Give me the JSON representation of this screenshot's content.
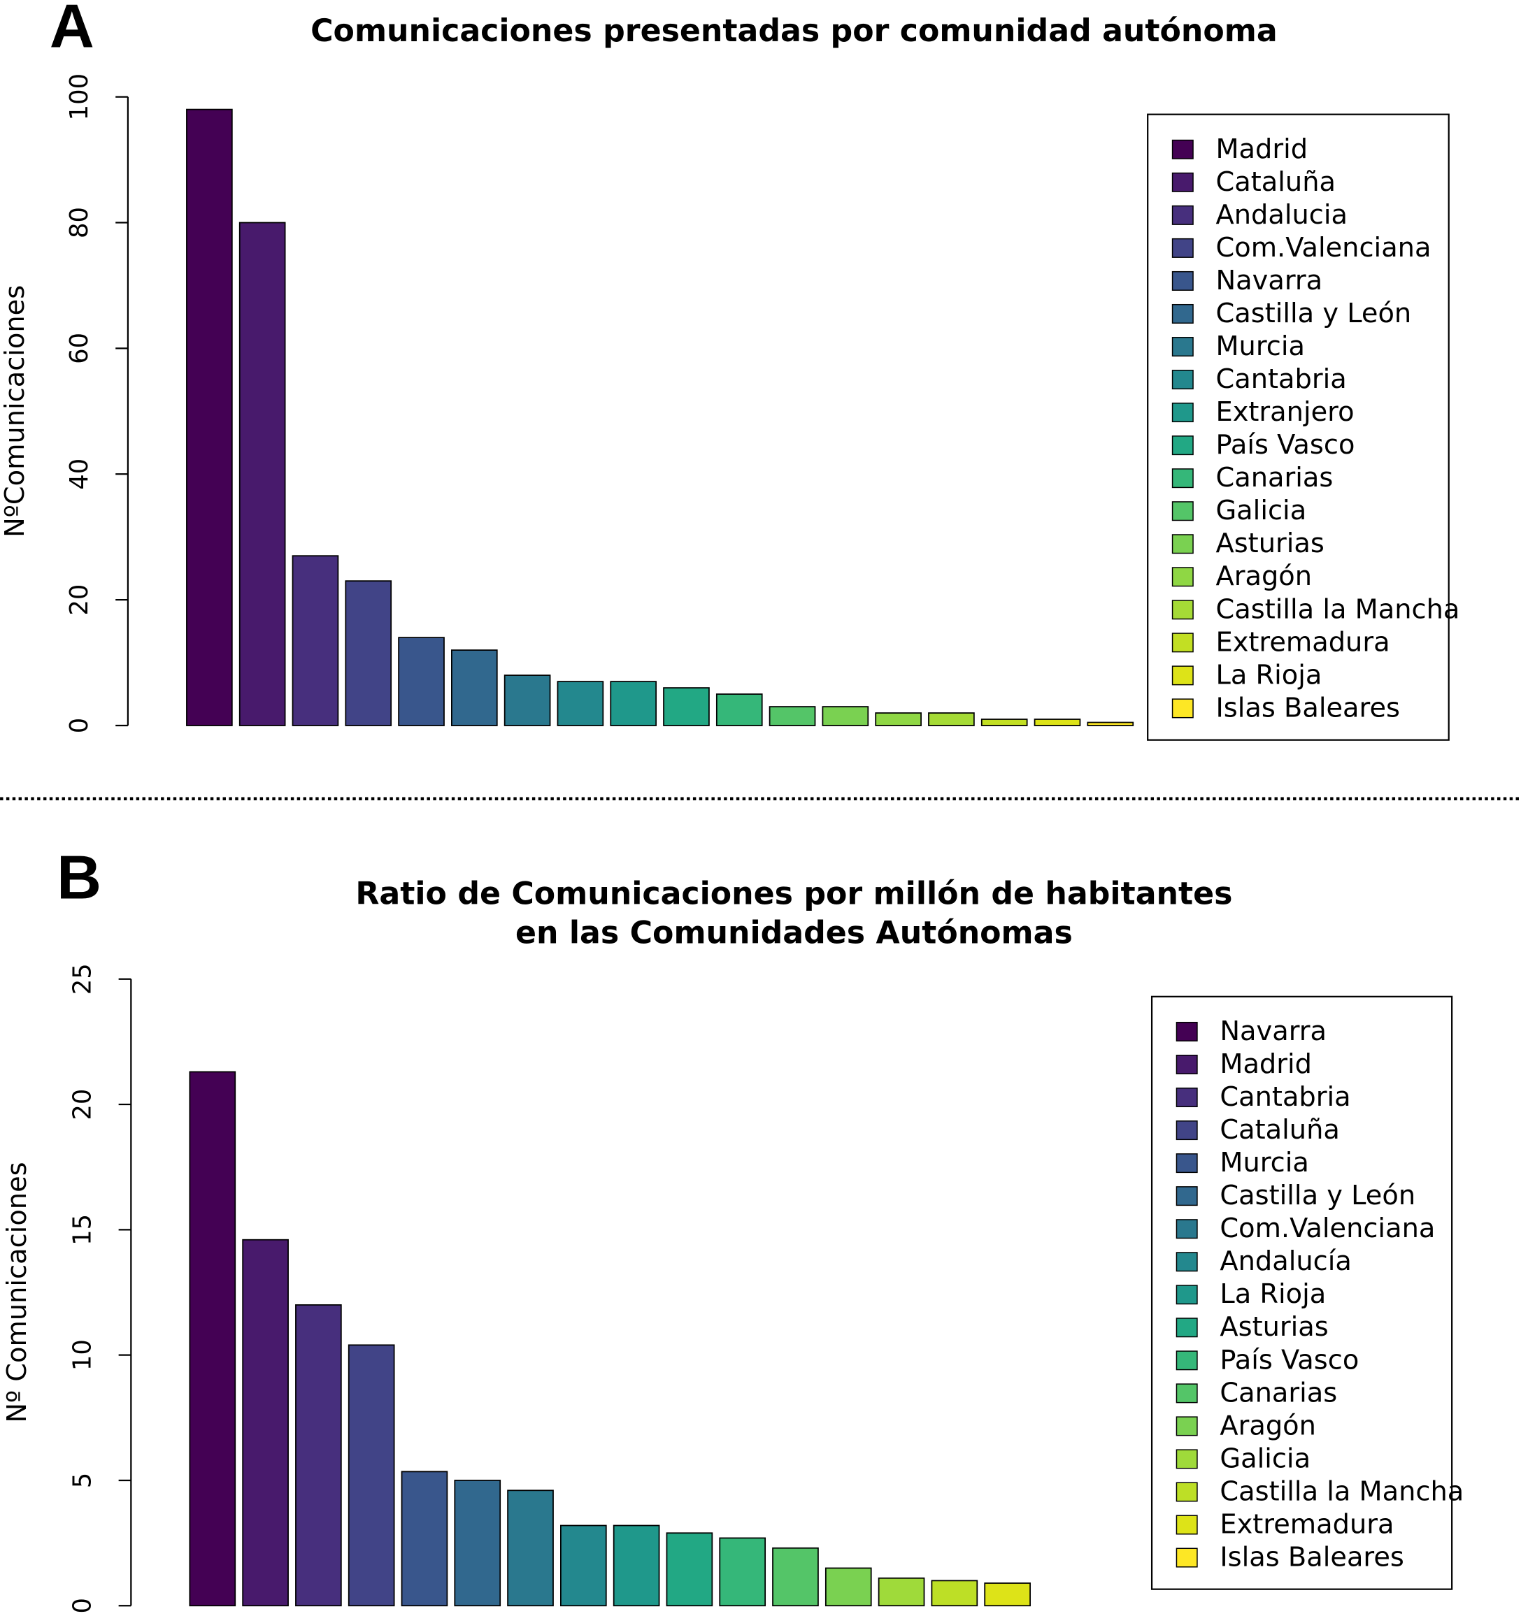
{
  "chart_data": [
    {
      "type": "bar",
      "panel_label": "A",
      "title": [
        "Comunicaciones presentadas por comunidad autónoma"
      ],
      "ylabel": "NºComunicaciones",
      "categories": [
        "Madrid",
        "Cataluña",
        "Andalucia",
        "Com.Valenciana",
        "Navarra",
        "Castilla y León",
        "Murcia",
        "Cantabria",
        "Extranjero",
        "País Vasco",
        "Canarias",
        "Galicia",
        "Asturias",
        "Aragón",
        "Castilla la Mancha",
        "Extremadura",
        "La Rioja",
        "Islas Baleares"
      ],
      "values": [
        98,
        80,
        27,
        23,
        14,
        12,
        8,
        7,
        7,
        6,
        5,
        3,
        3,
        2,
        2,
        1,
        1,
        0.5
      ],
      "colors": [
        "#440154",
        "#481a6c",
        "#472f7d",
        "#414487",
        "#39568c",
        "#31688e",
        "#2a788e",
        "#23888e",
        "#1f988b",
        "#22a884",
        "#35b779",
        "#54c568",
        "#7ad151",
        "#8fd744",
        "#a5db36",
        "#c2df23",
        "#dde318",
        "#fde725"
      ],
      "ylim": [
        0,
        100
      ],
      "yticks": [
        0,
        20,
        40,
        60,
        80,
        100
      ],
      "legend": "topright"
    },
    {
      "type": "bar",
      "panel_label": "B",
      "title": [
        "Ratio de Comunicaciones por millón de habitantes",
        "en las Comunidades Autónomas"
      ],
      "ylabel": "Nº Comunicaciones",
      "categories": [
        "Navarra",
        "Madrid",
        "Cantabria",
        "Cataluña",
        "Murcia",
        "Castilla y León",
        "Com.Valenciana",
        "Andalucía",
        "La Rioja",
        "Asturias",
        "País Vasco",
        "Canarias",
        "Aragón",
        "Galicia",
        "Castilla la Mancha",
        "Extremadura",
        "Islas Baleares"
      ],
      "values": [
        21.3,
        14.6,
        12.0,
        10.4,
        5.35,
        5.0,
        4.6,
        3.2,
        3.2,
        2.9,
        2.7,
        2.3,
        1.5,
        1.1,
        1.0,
        0.9,
        0
      ],
      "colors": [
        "#440154",
        "#481a6c",
        "#472f7d",
        "#414487",
        "#39568c",
        "#31688e",
        "#2a788e",
        "#23888e",
        "#1f988b",
        "#22a884",
        "#35b779",
        "#54c568",
        "#7ad151",
        "#9fda3a",
        "#bddf26",
        "#dde318",
        "#fde725"
      ],
      "ylim": [
        0,
        25
      ],
      "yticks": [
        0,
        5,
        10,
        15,
        20,
        25
      ],
      "legend": "topright"
    }
  ]
}
